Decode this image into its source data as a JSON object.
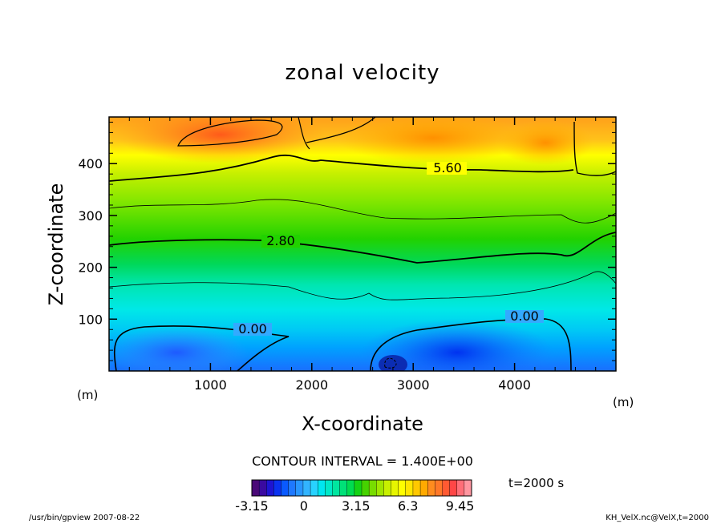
{
  "chart_data": {
    "type": "heatmap",
    "title": "zonal velocity",
    "xlabel": "X-coordinate",
    "ylabel": "Z-coordinate",
    "x_unit": "(m)",
    "y_unit": "(m)",
    "xlim": [
      0,
      5000
    ],
    "ylim": [
      0,
      490
    ],
    "x_ticks": [
      1000,
      2000,
      3000,
      4000
    ],
    "y_ticks": [
      100,
      200,
      300,
      400
    ],
    "contour_labels": [
      {
        "text": "5.60",
        "x": 3200,
        "z": 395
      },
      {
        "text": "2.80",
        "x": 1700,
        "z": 238
      },
      {
        "text": "0.00",
        "x": 1400,
        "z": 75
      },
      {
        "text": "0.00",
        "x": 4000,
        "z": 105
      }
    ],
    "contour_interval": "CONTOUR INTERVAL = 1.400E+00",
    "colorbar": {
      "range": [
        -3.15,
        10.15
      ],
      "tick_values": [
        -3.15,
        0,
        3.15,
        6.3,
        9.45
      ],
      "tick_labels": [
        "-3.15",
        "0",
        "3.15",
        "6.3",
        "9.45"
      ]
    }
  },
  "annotations": {
    "time": "t=2000 s",
    "footer_left": "/usr/bin/gpview   2007-08-22",
    "footer_right": "KH_VelX.nc@VelX,t=2000"
  }
}
